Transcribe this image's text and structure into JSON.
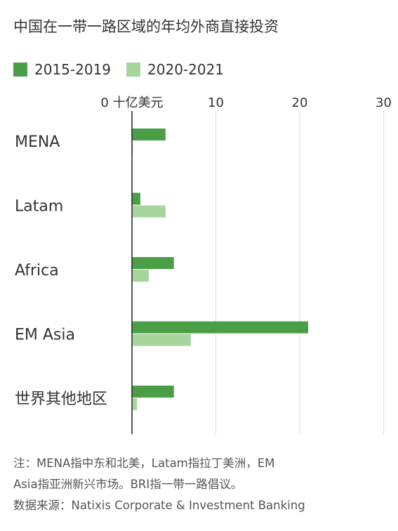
{
  "title": "中国在一带一路区域的年均外商直接投资",
  "legend": [
    {
      "label": "2015-2019",
      "color": "#4a9e45"
    },
    {
      "label": "2020-2021",
      "color": "#a6d49b"
    }
  ],
  "chart_data": {
    "type": "bar",
    "orientation": "horizontal",
    "categories": [
      "MENA",
      "Latam",
      "Africa",
      "EM Asia",
      "世界其他地区"
    ],
    "series": [
      {
        "name": "2015-2019",
        "color": "#4a9e45",
        "values": [
          4.0,
          1.0,
          5.0,
          21.0,
          5.0
        ]
      },
      {
        "name": "2020-2021",
        "color": "#a6d49b",
        "values": [
          0.1,
          4.0,
          2.0,
          7.0,
          0.6
        ]
      }
    ],
    "xlim": [
      0,
      30
    ],
    "ticks": [
      0,
      10,
      20,
      30
    ],
    "tick_labels": [
      "0 十亿美元",
      "10",
      "20",
      "30"
    ],
    "grid": true
  },
  "footnote": {
    "line1": "注：MENA指中东和北美，Latam指拉丁美洲，EM",
    "line2": "Asia指亚洲新兴市场。BRI指一带一路倡议。",
    "line3": "数据来源：Natixis Corporate & Investment Banking"
  }
}
